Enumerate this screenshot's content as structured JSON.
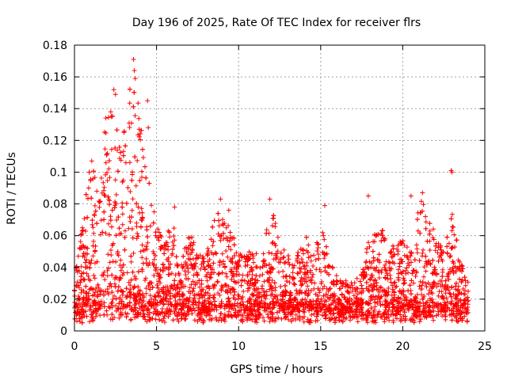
{
  "chart_data": {
    "type": "scatter",
    "title": "Day 196 of 2025, Rate Of TEC Index for receiver flrs",
    "xlabel": "GPS time / hours",
    "ylabel": "ROTI / TECUs",
    "xlim": [
      0,
      25
    ],
    "ylim": [
      0,
      0.18
    ],
    "x_ticks": [
      0,
      5,
      10,
      15,
      20,
      25
    ],
    "x_tick_labels": [
      "0",
      "5",
      "10",
      "15",
      "20",
      "25"
    ],
    "y_ticks": [
      0,
      0.02,
      0.04,
      0.06,
      0.08,
      0.1,
      0.12,
      0.14,
      0.16,
      0.18
    ],
    "y_tick_labels": [
      "0",
      "0.02",
      "0.04",
      "0.06",
      "0.08",
      "0.1",
      "0.12",
      "0.14",
      "0.16",
      "0.18"
    ],
    "grid": true,
    "marker": "+",
    "series": [
      {
        "name": "ROTI",
        "color": "#ff0000",
        "envelope": {
          "hours": [
            0,
            0.5,
            1,
            1.5,
            2,
            2.5,
            3,
            3.5,
            4,
            4.5,
            5,
            5.5,
            6,
            6.5,
            7,
            7.5,
            8,
            8.5,
            9,
            9.5,
            10,
            10.5,
            11,
            11.5,
            12,
            12.5,
            13,
            13.5,
            14,
            14.5,
            15,
            15.5,
            16,
            16.5,
            17,
            17.5,
            18,
            18.5,
            19,
            19.5,
            20,
            20.5,
            21,
            21.5,
            22,
            22.5,
            23,
            23.5,
            24
          ],
          "max_roti": [
            0.035,
            0.07,
            0.11,
            0.085,
            0.15,
            0.13,
            0.125,
            0.17,
            0.14,
            0.1,
            0.065,
            0.06,
            0.07,
            0.045,
            0.065,
            0.05,
            0.045,
            0.075,
            0.08,
            0.065,
            0.05,
            0.05,
            0.05,
            0.052,
            0.08,
            0.055,
            0.048,
            0.045,
            0.065,
            0.045,
            0.075,
            0.045,
            0.035,
            0.032,
            0.03,
            0.038,
            0.06,
            0.075,
            0.055,
            0.055,
            0.06,
            0.05,
            0.085,
            0.075,
            0.06,
            0.05,
            0.075,
            0.045,
            0.03
          ]
        },
        "highlights": [
          {
            "x": 3.6,
            "y": 0.171
          },
          {
            "x": 3.65,
            "y": 0.164
          },
          {
            "x": 3.7,
            "y": 0.159
          },
          {
            "x": 2.4,
            "y": 0.152
          },
          {
            "x": 2.5,
            "y": 0.149
          },
          {
            "x": 4.45,
            "y": 0.145
          },
          {
            "x": 4.5,
            "y": 0.128
          },
          {
            "x": 3.95,
            "y": 0.127
          },
          {
            "x": 2.25,
            "y": 0.135
          },
          {
            "x": 1.05,
            "y": 0.107
          },
          {
            "x": 22.95,
            "y": 0.101
          },
          {
            "x": 23.0,
            "y": 0.1
          },
          {
            "x": 21.2,
            "y": 0.087
          },
          {
            "x": 20.5,
            "y": 0.085
          },
          {
            "x": 17.9,
            "y": 0.085
          },
          {
            "x": 8.9,
            "y": 0.083
          },
          {
            "x": 11.9,
            "y": 0.083
          },
          {
            "x": 15.25,
            "y": 0.079
          },
          {
            "x": 9.4,
            "y": 0.076
          },
          {
            "x": 6.1,
            "y": 0.078
          }
        ]
      }
    ]
  }
}
